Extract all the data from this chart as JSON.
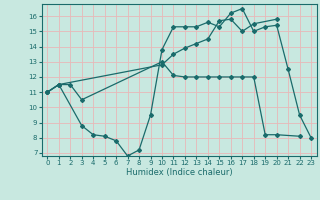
{
  "xlabel": "Humidex (Indice chaleur)",
  "background_color": "#c8e8e0",
  "grid_color": "#e8b8b8",
  "line_color": "#1a6b6b",
  "xlim": [
    -0.5,
    23.5
  ],
  "ylim": [
    6.8,
    16.8
  ],
  "yticks": [
    7,
    8,
    9,
    10,
    11,
    12,
    13,
    14,
    15,
    16
  ],
  "xticks": [
    0,
    1,
    2,
    3,
    4,
    5,
    6,
    7,
    8,
    9,
    10,
    11,
    12,
    13,
    14,
    15,
    16,
    17,
    18,
    19,
    20,
    21,
    22,
    23
  ],
  "series1_x": [
    0,
    1,
    2,
    3,
    10,
    11,
    12,
    13,
    14,
    15,
    16,
    17,
    18,
    19,
    20,
    22
  ],
  "series1_y": [
    11,
    11.5,
    11.5,
    10.5,
    13.0,
    12.1,
    12.0,
    12.0,
    12.0,
    12.0,
    12.0,
    12.0,
    12.0,
    8.2,
    8.2,
    8.1
  ],
  "series2_x": [
    0,
    1,
    3,
    4,
    5,
    6,
    7,
    8,
    9,
    10,
    11,
    12,
    13,
    14,
    15,
    16,
    17,
    18,
    19,
    20,
    21,
    22,
    23
  ],
  "series2_y": [
    11,
    11.5,
    8.8,
    8.2,
    8.1,
    7.8,
    6.8,
    7.2,
    9.5,
    13.8,
    15.3,
    15.3,
    15.3,
    15.6,
    15.3,
    16.2,
    16.5,
    15.0,
    15.3,
    15.4,
    12.5,
    9.5,
    8.0
  ],
  "series3_x": [
    0,
    1,
    10,
    11,
    12,
    13,
    14,
    15,
    16,
    17,
    18,
    20
  ],
  "series3_y": [
    11,
    11.5,
    12.8,
    13.5,
    13.9,
    14.2,
    14.5,
    15.7,
    15.8,
    15.0,
    15.5,
    15.8
  ]
}
